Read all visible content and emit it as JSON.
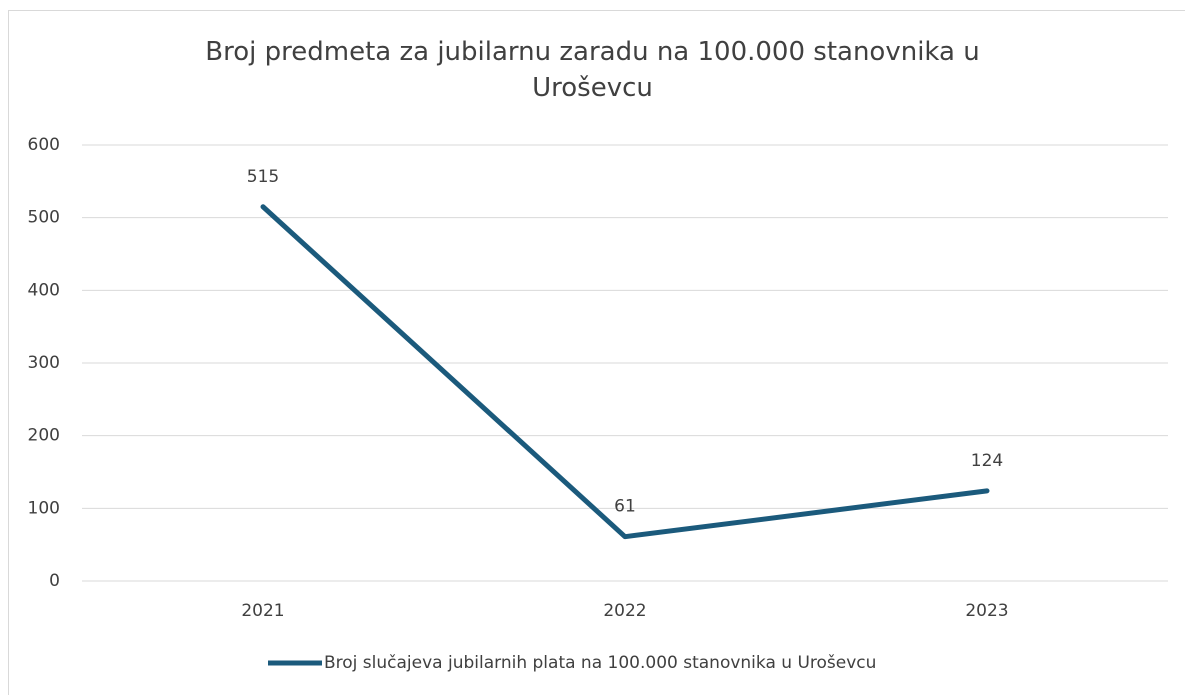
{
  "chart_data": {
    "type": "line",
    "title": "Broj predmeta za jubilarnu zaradu na 100.000 stanovnika u Uroševcu",
    "categories": [
      "2021",
      "2022",
      "2023"
    ],
    "series": [
      {
        "name": "Broj slučajeva jubilarnih plata na 100.000 stanovnika u Uroševcu",
        "color": "#1b5a7c",
        "values": [
          515,
          61,
          124
        ]
      }
    ],
    "ylim": [
      0,
      600
    ],
    "yticks": [
      0,
      100,
      200,
      300,
      400,
      500,
      600
    ],
    "grid": true,
    "legend": "bottom"
  }
}
